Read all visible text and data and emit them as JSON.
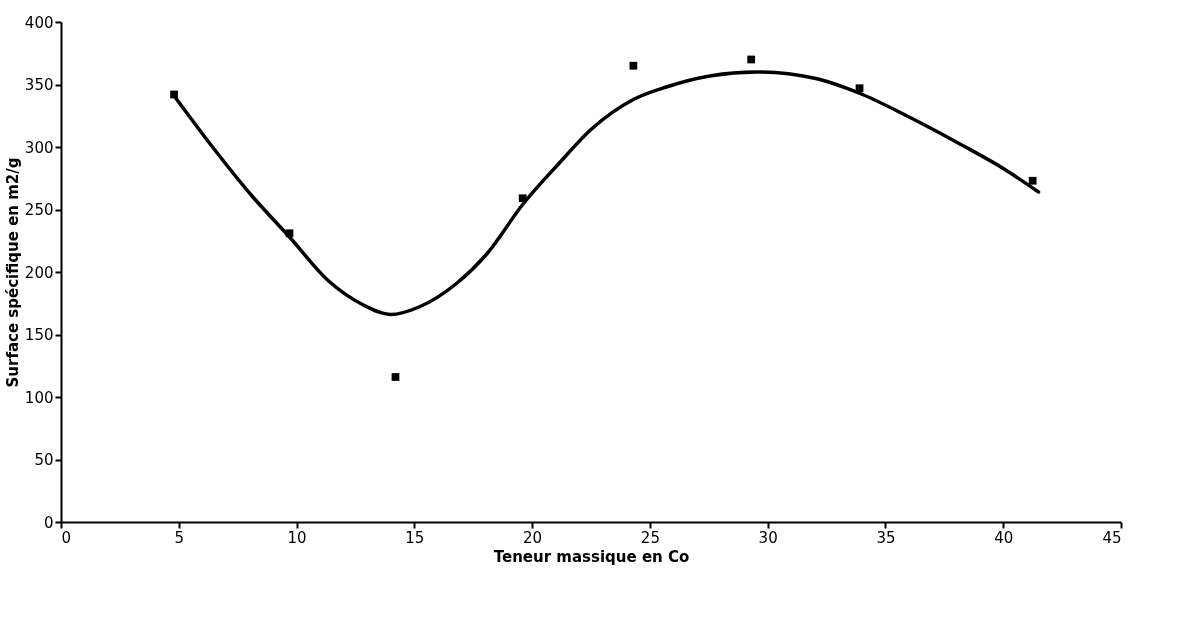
{
  "chart_data": {
    "type": "scatter",
    "xlabel": "Teneur massique en Co",
    "ylabel": "Surface spécifique en m2/g",
    "xlim": [
      0,
      45
    ],
    "ylim": [
      0,
      400
    ],
    "xticks": [
      0,
      5,
      10,
      15,
      20,
      25,
      30,
      35,
      40,
      45
    ],
    "yticks": [
      0,
      50,
      100,
      150,
      200,
      250,
      300,
      350,
      400
    ],
    "grid": false,
    "series": [
      {
        "color": "#000000",
        "marker": "square",
        "x": [
          4.8,
          9.7,
          14.2,
          19.6,
          24.3,
          29.3,
          33.9,
          41.25
        ],
        "values": [
          342,
          231,
          116,
          259,
          365,
          370,
          347,
          273
        ]
      },
      {
        "type": "line",
        "color": "#000000",
        "marker": "none",
        "line_style": "solid",
        "x": [
          4.8,
          6.35,
          8.1,
          9.7,
          11.35,
          12.8,
          14.0,
          15.2,
          16.8,
          18.1,
          19.6,
          21.1,
          22.5,
          24.3,
          25.7,
          27.6,
          29.5,
          32.0,
          33.9,
          35.9,
          38.3,
          39.9,
          41.5
        ],
        "values": [
          341,
          302,
          261,
          228,
          193,
          174,
          166,
          172,
          191,
          215,
          254,
          286,
          314,
          338,
          348,
          357,
          360,
          355,
          343,
          325,
          301,
          284,
          264
        ]
      }
    ]
  }
}
